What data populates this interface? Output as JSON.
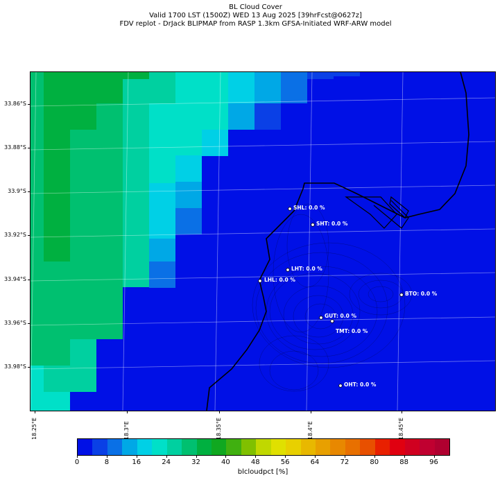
{
  "title": {
    "line1": "BL Cloud Cover",
    "line2": "Valid 1700 LST (1500Z) WED 13 Aug 2025 [39hrFcst@0627z]",
    "line3": "FDV replot - DrJack BLIPMAP from RASP 1.3km GFSA-Initiated WRF-ARW model"
  },
  "axes": {
    "y_ticks": [
      "33.86°S",
      "33.88°S",
      "33.9°S",
      "33.92°S",
      "33.94°S",
      "33.96°S",
      "33.98°S"
    ],
    "x_ticks": [
      "18.25°E",
      "18.3°E",
      "18.35°E",
      "18.4°E",
      "18.45°E"
    ]
  },
  "sites": [
    {
      "code": "SHL",
      "label": "SHL: 0.0 %",
      "value": 0.0
    },
    {
      "code": "SHT",
      "label": "SHT: 0.0 %",
      "value": 0.0
    },
    {
      "code": "LHT",
      "label": "LHT: 0.0 %",
      "value": 0.0
    },
    {
      "code": "LHL",
      "label": "LHL: 0.0 %",
      "value": 0.0
    },
    {
      "code": "BTO",
      "label": "BTO: 0.0 %",
      "value": 0.0
    },
    {
      "code": "GUT",
      "label": "GUT: 0.0 %",
      "value": 0.0
    },
    {
      "code": "TMT",
      "label": "TMT: 0.0 %",
      "value": 0.0
    },
    {
      "code": "OHT",
      "label": "OHT: 0.0 %",
      "value": 0.0
    }
  ],
  "colorbar": {
    "label": "blcloudpct [%]",
    "tick_values": [
      "0",
      "8",
      "16",
      "24",
      "32",
      "40",
      "48",
      "56",
      "64",
      "72",
      "80",
      "88",
      "96"
    ],
    "colors": [
      "#0010e6",
      "#0a40e6",
      "#0a70e6",
      "#00a8e6",
      "#00d0e6",
      "#00e0c8",
      "#00d0a0",
      "#00c070",
      "#00b040",
      "#10a820",
      "#40b010",
      "#80c000",
      "#c0d800",
      "#e0e000",
      "#e8d000",
      "#e8b800",
      "#e8a000",
      "#e88800",
      "#e87000",
      "#e85000",
      "#e82000",
      "#e00010",
      "#d00020",
      "#c00030",
      "#b00030"
    ]
  },
  "colors": {
    "background_field": "#0010e6",
    "land_outline": "#000000",
    "grid": "#ffffff",
    "site_text": "#ffffff"
  }
}
